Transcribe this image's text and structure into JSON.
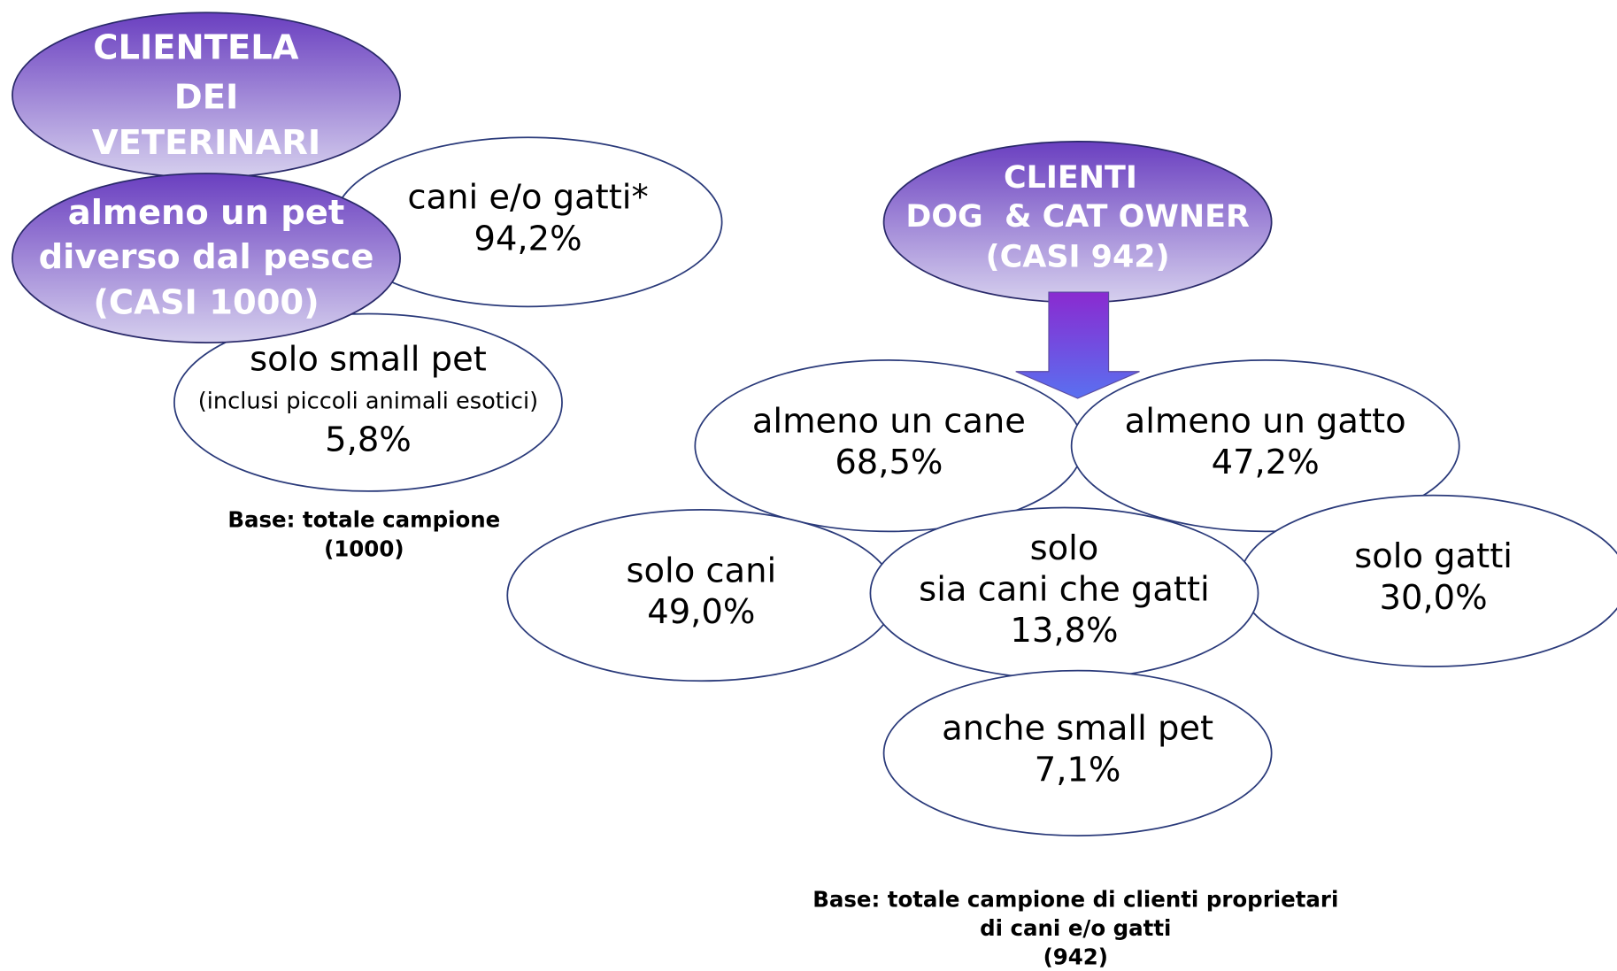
{
  "left": {
    "header": [
      "CLIENTELA",
      "DEI",
      "VETERINARI"
    ],
    "subheader": [
      "almeno un pet",
      "diverso dal pesce",
      "(CASI 1000)"
    ],
    "nodes": [
      {
        "lines": [
          "cani e/o gatti*",
          "94,2%"
        ]
      },
      {
        "lines": [
          "solo small pet",
          "(inclusi piccoli animali esotici)",
          "5,8%"
        ]
      }
    ],
    "base": [
      "Base: totale campione",
      "(1000)"
    ]
  },
  "right": {
    "header": [
      "CLIENTI",
      "DOG  & CAT OWNER",
      "(CASI 942)"
    ],
    "nodes": [
      {
        "lines": [
          "almeno un cane",
          "68,5%"
        ]
      },
      {
        "lines": [
          "almeno un gatto",
          "47,2%"
        ]
      },
      {
        "lines": [
          "solo cani",
          "49,0%"
        ]
      },
      {
        "lines": [
          "solo",
          "sia cani che gatti",
          "13,8%"
        ]
      },
      {
        "lines": [
          "solo gatti",
          "30,0%"
        ]
      },
      {
        "lines": [
          "anche small pet",
          "7,1%"
        ]
      }
    ],
    "base": [
      "Base: totale campione di clienti proprietari",
      "di cani e/o gatti",
      "(942)"
    ]
  }
}
